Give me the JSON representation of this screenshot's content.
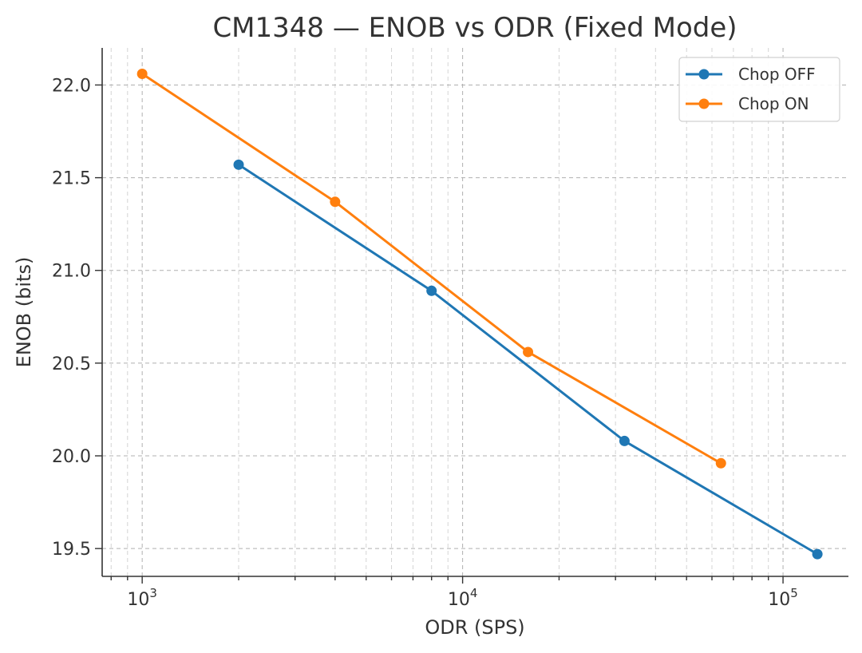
{
  "chart_data": {
    "type": "line",
    "title": "CM1348 — ENOB vs ODR (Fixed Mode)",
    "xlabel": "ODR (SPS)",
    "ylabel": "ENOB (bits)",
    "xscale": "log",
    "xlim": [
      750,
      160000
    ],
    "ylim": [
      19.35,
      22.2
    ],
    "x_ticks": [
      {
        "value": 1000,
        "base": "10",
        "exp": "3"
      },
      {
        "value": 10000,
        "base": "10",
        "exp": "4"
      },
      {
        "value": 100000,
        "base": "10",
        "exp": "5"
      }
    ],
    "y_ticks": [
      {
        "value": 19.5,
        "label": "19.5"
      },
      {
        "value": 20.0,
        "label": "20.0"
      },
      {
        "value": 20.5,
        "label": "20.5"
      },
      {
        "value": 21.0,
        "label": "21.0"
      },
      {
        "value": 21.5,
        "label": "21.5"
      },
      {
        "value": 22.0,
        "label": "22.0"
      }
    ],
    "grid": true,
    "legend_position": "top-right",
    "series": [
      {
        "name": "Chop OFF",
        "color": "#1f77b4",
        "points": [
          {
            "x": 2000,
            "y": 21.57
          },
          {
            "x": 8000,
            "y": 20.89
          },
          {
            "x": 32000,
            "y": 20.08
          },
          {
            "x": 128000,
            "y": 19.47
          }
        ]
      },
      {
        "name": "Chop ON",
        "color": "#ff7f0e",
        "points": [
          {
            "x": 1000,
            "y": 22.06
          },
          {
            "x": 4000,
            "y": 21.37
          },
          {
            "x": 16000,
            "y": 20.56
          },
          {
            "x": 64000,
            "y": 19.96
          }
        ]
      }
    ]
  }
}
